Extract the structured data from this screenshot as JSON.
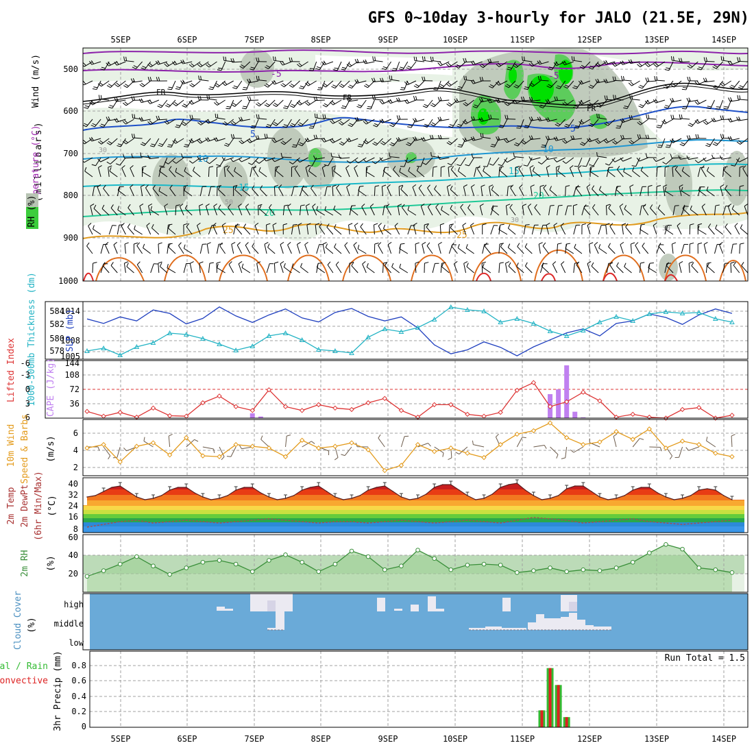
{
  "title": "GFS 0~10day 3-hourly for JALO (21.5E, 29N)",
  "date_labels": [
    "5SEP",
    "6SEP",
    "7SEP",
    "8SEP",
    "9SEP",
    "10SEP",
    "11SEP",
    "12SEP",
    "13SEP",
    "14SEP"
  ],
  "colors": {
    "rh_fill": "#e8f2e6",
    "rh_mid": "#b8c4b4",
    "rh_green": "#3ccd3c",
    "temp_purple": "#8c22aa",
    "temp_blue": "#1e50c8",
    "temp_lightblue": "#1e96d2",
    "temp_cyan": "#18b8c8",
    "temp_teal": "#1ec896",
    "temp_orange": "#e09a1e",
    "temp_darkorange": "#e06e1e",
    "temp_red": "#dc2828",
    "slp": "#1f3fbf",
    "thickness": "#22b3c4",
    "lifted_index": "#dd3333",
    "cape": "#c080f0",
    "wind10": "#e39a1a",
    "rh2m": "#3a8f3a",
    "cloud_bg": "#6aaad8",
    "cloud_block": "#ebeaf2",
    "precip_total": "#33bb33",
    "precip_conv": "#dd2222"
  },
  "panels": {
    "upper": {
      "y_axis_label": "(millibars)",
      "legend_wind": "Wind (m/s)",
      "legend_temp": "Temperature (°C)",
      "legend_rh": "RH (%)",
      "pressure_levels": [
        500,
        600,
        700,
        800,
        900,
        1000
      ],
      "contour_labels": [
        "-5",
        "FR",
        "FR",
        "FR",
        "5",
        "5",
        "10",
        "10",
        "15",
        "15",
        "20",
        "20",
        "25",
        "25",
        "30",
        "30",
        "50",
        "30"
      ]
    },
    "slp": {
      "label_slp": "SLP (mb)",
      "label_thickness": "1000-500mb Thickness (dm)",
      "ticks_slp": [
        "1014",
        "1008",
        "1005"
      ],
      "ticks_thickness": [
        "584",
        "582",
        "580",
        "578"
      ]
    },
    "cape": {
      "label_li": "Lifted Index",
      "label_cape": "CAPE (J/kg)",
      "ticks_li": [
        "-6",
        "-3",
        "0",
        "3",
        "6"
      ],
      "ticks_cape": [
        "144",
        "108",
        "72",
        "36"
      ]
    },
    "wind10": {
      "label_main": "10m Wind",
      "label_sub": "Speed & Barbs",
      "unit": "(m/s)",
      "ticks": [
        "6",
        "4",
        "2"
      ]
    },
    "temp2m": {
      "label1": "2m Temp",
      "label2": "2m DewPt",
      "label3": "(6hr Min/Max)",
      "unit": "(°C)",
      "ticks": [
        "40",
        "32",
        "24",
        "16",
        "8"
      ]
    },
    "rh2m": {
      "label": "2m RH",
      "unit": "(%)",
      "ticks": [
        "60",
        "40",
        "20"
      ]
    },
    "cloud": {
      "label": "Cloud Cover",
      "unit": "(%)",
      "ticks": [
        "high",
        "middle",
        "low"
      ]
    },
    "precip": {
      "label_total": "Total / Rain",
      "label_conv": "Convective",
      "label_main": "3hr Precip (mm)",
      "run_total": "Run Total = 1.5",
      "ticks": [
        "0.8",
        "0.6",
        "0.4",
        "0.2",
        "0"
      ]
    }
  },
  "chart_data": [
    {
      "type": "line",
      "name": "SLP",
      "x_hours": [
        0,
        6,
        12,
        18,
        24,
        30,
        36,
        42,
        48,
        54,
        60,
        66,
        72,
        78,
        84,
        90,
        96,
        102,
        108,
        114,
        120,
        126,
        132,
        138,
        144,
        150,
        156,
        162,
        168,
        174,
        180,
        186,
        192,
        198,
        204,
        210,
        216,
        222,
        228,
        234
      ],
      "values": [
        1012.8,
        1011.9,
        1013.2,
        1012.4,
        1014.6,
        1013.9,
        1011.8,
        1012.9,
        1015.2,
        1013.4,
        1012.1,
        1013.6,
        1014.8,
        1013.0,
        1012.2,
        1014.1,
        1014.9,
        1013.3,
        1012.4,
        1013.2,
        1011.0,
        1007.6,
        1005.8,
        1006.6,
        1008.2,
        1007.1,
        1005.4,
        1007.2,
        1008.6,
        1010.0,
        1010.8,
        1009.4,
        1011.9,
        1012.4,
        1013.8,
        1013.1,
        1011.7,
        1013.6,
        1014.8,
        1013.9
      ],
      "ylim": [
        1005,
        1016
      ]
    },
    {
      "type": "line",
      "name": "Thickness",
      "x_hours": [
        0,
        6,
        12,
        18,
        24,
        30,
        36,
        42,
        48,
        54,
        60,
        66,
        72,
        78,
        84,
        90,
        96,
        102,
        108,
        114,
        120,
        126,
        132,
        138,
        144,
        150,
        156,
        162,
        168,
        174,
        180,
        186,
        192,
        198,
        204,
        210,
        216,
        222,
        228,
        234
      ],
      "values": [
        578.2,
        578.6,
        577.6,
        578.8,
        579.4,
        580.8,
        580.6,
        580.0,
        579.2,
        578.3,
        578.9,
        580.4,
        580.8,
        579.8,
        578.4,
        578.2,
        577.9,
        580.2,
        581.4,
        581.0,
        581.6,
        582.8,
        584.6,
        584.2,
        584.0,
        582.4,
        582.9,
        582.2,
        581.1,
        580.4,
        581.2,
        582.4,
        583.2,
        582.6,
        583.6,
        583.9,
        583.7,
        583.8,
        582.9,
        582.4
      ],
      "ylim": [
        577.2,
        585.2
      ]
    },
    {
      "type": "line",
      "name": "Lifted Index",
      "x_hours": [
        0,
        6,
        12,
        18,
        24,
        30,
        36,
        42,
        48,
        54,
        60,
        66,
        72,
        78,
        84,
        90,
        96,
        102,
        108,
        114,
        120,
        126,
        132,
        138,
        144,
        150,
        156,
        162,
        168,
        174,
        180,
        186,
        192,
        198,
        204,
        210,
        216,
        222,
        228,
        234
      ],
      "values": [
        4.6,
        5.6,
        4.8,
        5.8,
        3.9,
        5.5,
        5.6,
        2.8,
        1.4,
        3.6,
        4.4,
        0.1,
        3.6,
        4.4,
        3.2,
        3.9,
        4.2,
        2.8,
        1.9,
        4.4,
        5.8,
        3.2,
        3.2,
        5.2,
        5.6,
        4.8,
        0.2,
        -1.4,
        3.6,
        2.6,
        0.6,
        2.4,
        5.8,
        5.2,
        5.8,
        6.0,
        4.2,
        3.8,
        6.0,
        5.4
      ],
      "ylim": [
        6,
        -6
      ]
    },
    {
      "type": "bar",
      "name": "CAPE",
      "x_hours": [
        60,
        63,
        168,
        171,
        174,
        177,
        180
      ],
      "values": [
        12,
        4,
        60,
        72,
        132,
        16,
        2
      ],
      "ylim": [
        0,
        144
      ]
    },
    {
      "type": "line",
      "name": "10m Wind Speed",
      "x_hours": [
        0,
        6,
        12,
        18,
        24,
        30,
        36,
        42,
        48,
        54,
        60,
        66,
        72,
        78,
        84,
        90,
        96,
        102,
        108,
        114,
        120,
        126,
        132,
        138,
        144,
        150,
        156,
        162,
        168,
        174,
        180,
        186,
        192,
        198,
        204,
        210,
        216,
        222,
        228,
        234
      ],
      "values": [
        4.2,
        4.6,
        2.6,
        4.4,
        4.8,
        3.4,
        5.4,
        3.3,
        3.2,
        4.6,
        4.4,
        4.2,
        3.2,
        5.1,
        4.2,
        4.4,
        4.8,
        4.0,
        1.6,
        2.2,
        4.6,
        3.8,
        4.2,
        3.6,
        3.1,
        4.6,
        5.8,
        6.2,
        7.1,
        5.4,
        4.6,
        4.9,
        6.1,
        5.2,
        6.4,
        4.2,
        5.0,
        4.6,
        3.6,
        3.2
      ],
      "ylim": [
        1,
        7.5
      ]
    },
    {
      "type": "area",
      "name": "2m Temperature",
      "x_hours": [
        0,
        3,
        6,
        9,
        12,
        15,
        18,
        21,
        24,
        27,
        30,
        33,
        36,
        39,
        42,
        45,
        48,
        51,
        54,
        57,
        60,
        63,
        66,
        69,
        72,
        75,
        78,
        81,
        84,
        87,
        90,
        93,
        96,
        99,
        102,
        105,
        108,
        111,
        114,
        117,
        120,
        123,
        126,
        129,
        132,
        135,
        138,
        141,
        144,
        147,
        150,
        153,
        156,
        159,
        162,
        165,
        168,
        171,
        174,
        177,
        180,
        183,
        186,
        189,
        192,
        195,
        198,
        201,
        204,
        207,
        210,
        213,
        216,
        219,
        222,
        225,
        228,
        231,
        234
      ],
      "values": [
        30,
        31,
        34,
        37,
        38,
        34,
        30,
        28,
        29,
        31,
        35,
        37,
        37,
        33,
        30,
        28,
        29,
        31,
        35,
        37,
        37,
        33,
        30,
        28,
        29,
        31,
        35,
        37,
        38,
        34,
        30,
        28,
        29,
        31,
        35,
        37,
        38,
        34,
        30,
        28,
        29,
        32,
        37,
        39,
        39,
        35,
        31,
        28,
        29,
        32,
        37,
        39,
        40,
        35,
        31,
        28,
        29,
        31,
        36,
        38,
        38,
        34,
        30,
        28,
        29,
        31,
        35,
        37,
        37,
        33,
        30,
        28,
        29,
        31,
        35,
        36,
        35,
        31,
        28
      ],
      "ylim": [
        4,
        44
      ]
    },
    {
      "type": "line",
      "name": "2m Dew Point",
      "x_hours": [
        0,
        6,
        12,
        18,
        24,
        30,
        36,
        42,
        48,
        54,
        60,
        66,
        72,
        78,
        84,
        90,
        96,
        102,
        108,
        114,
        120,
        126,
        132,
        138,
        144,
        150,
        156,
        162,
        168,
        174,
        180,
        186,
        192,
        198,
        204,
        210,
        216,
        222,
        228,
        234
      ],
      "values": [
        8,
        10,
        12,
        13,
        11,
        12,
        13,
        12,
        11,
        12,
        13,
        14,
        13,
        12,
        11,
        12,
        12,
        11,
        12,
        13,
        12,
        11,
        12,
        13,
        12,
        11,
        13,
        15,
        14,
        13,
        11,
        12,
        13,
        14,
        12,
        11,
        10,
        11,
        12,
        13
      ],
      "ylim": [
        4,
        44
      ]
    },
    {
      "type": "area",
      "name": "2m RH",
      "x_hours": [
        0,
        6,
        12,
        18,
        24,
        30,
        36,
        42,
        48,
        54,
        60,
        66,
        72,
        78,
        84,
        90,
        96,
        102,
        108,
        114,
        120,
        126,
        132,
        138,
        144,
        150,
        156,
        162,
        168,
        174,
        180,
        186,
        192,
        198,
        204,
        210,
        216,
        222,
        228,
        234
      ],
      "values": [
        17,
        23,
        30,
        38,
        28,
        19,
        26,
        32,
        34,
        30,
        22,
        34,
        40,
        32,
        22,
        30,
        44,
        38,
        24,
        28,
        45,
        36,
        24,
        29,
        30,
        29,
        21,
        23,
        26,
        22,
        24,
        23,
        26,
        32,
        42,
        51,
        46,
        26,
        24,
        21
      ],
      "ylim": [
        0,
        60
      ]
    },
    {
      "type": "bar",
      "name": "3hr Precip Total",
      "x_hours": [
        165,
        168,
        171,
        174
      ],
      "values": [
        0.2,
        0.7,
        0.5,
        0.12
      ],
      "ylim": [
        0,
        0.9
      ]
    },
    {
      "type": "bar",
      "name": "3hr Precip Convective",
      "x_hours": [
        165,
        168,
        171,
        174
      ],
      "values": [
        0.2,
        0.7,
        0.5,
        0.12
      ],
      "ylim": [
        0,
        0.9
      ]
    }
  ]
}
